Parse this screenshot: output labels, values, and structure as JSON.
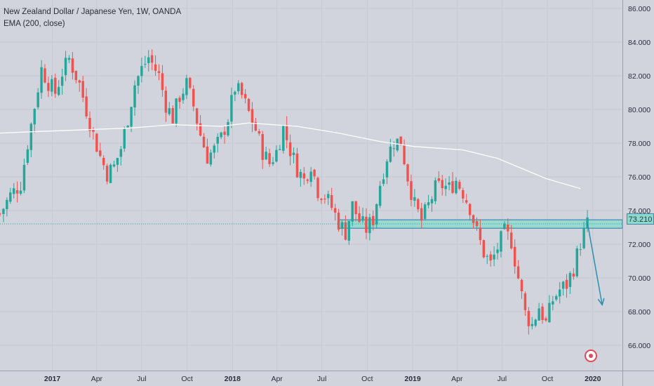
{
  "legend": {
    "symbol": "New Zealand Dollar / Japanese Yen, 1W, OANDA",
    "indicator": "EMA (200, close)"
  },
  "price_label": "73.210",
  "colors": {
    "background": "#d1d4dc",
    "up": "#26a69a",
    "down": "#ef5350",
    "ema": "#ffffff",
    "zone_fill": "#8fd9cc",
    "zone_border": "#3f87b0",
    "arrow": "#2a8fb0",
    "alert": "#e04a5a"
  },
  "icons": [
    "alert-icon"
  ],
  "chart_data": {
    "type": "candlestick",
    "interval": "1W",
    "ylim": [
      64.5,
      86.5
    ],
    "x_range": [
      "2016-09-17",
      "2020-03-01"
    ],
    "y_ticks": [
      "66.000",
      "68.000",
      "70.000",
      "72.000",
      "74.000",
      "76.000",
      "78.000",
      "80.000",
      "82.000",
      "84.000",
      "86.000"
    ],
    "x_ticks": [
      {
        "label": "2017",
        "date": "2017-01-01",
        "bold": true
      },
      {
        "label": "Apr",
        "date": "2017-04-01"
      },
      {
        "label": "Jul",
        "date": "2017-07-01"
      },
      {
        "label": "Oct",
        "date": "2017-10-01"
      },
      {
        "label": "2018",
        "date": "2018-01-01",
        "bold": true
      },
      {
        "label": "Apr",
        "date": "2018-04-01"
      },
      {
        "label": "Jul",
        "date": "2018-07-01"
      },
      {
        "label": "Oct",
        "date": "2018-10-01"
      },
      {
        "label": "2019",
        "date": "2019-01-01",
        "bold": true
      },
      {
        "label": "Apr",
        "date": "2019-04-01"
      },
      {
        "label": "Jul",
        "date": "2019-07-01"
      },
      {
        "label": "Oct",
        "date": "2019-10-01"
      },
      {
        "label": "2020",
        "date": "2020-01-01",
        "bold": true
      }
    ],
    "current_price": 73.21,
    "close_points": [
      [
        "2016-09-17",
        73.8
      ],
      [
        "2016-10-08",
        74.9
      ],
      [
        "2016-10-29",
        75.6
      ],
      [
        "2016-11-12",
        78.0
      ],
      [
        "2016-11-26",
        80.2
      ],
      [
        "2016-12-10",
        82.4
      ],
      [
        "2016-12-24",
        81.6
      ],
      [
        "2017-01-07",
        81.0
      ],
      [
        "2017-01-21",
        82.2
      ],
      [
        "2017-02-04",
        83.0
      ],
      [
        "2017-02-25",
        81.5
      ],
      [
        "2017-03-11",
        80.0
      ],
      [
        "2017-03-25",
        78.5
      ],
      [
        "2017-04-08",
        77.2
      ],
      [
        "2017-04-22",
        76.2
      ],
      [
        "2017-05-06",
        76.6
      ],
      [
        "2017-05-20",
        77.7
      ],
      [
        "2017-06-03",
        79.5
      ],
      [
        "2017-06-17",
        81.5
      ],
      [
        "2017-07-01",
        82.4
      ],
      [
        "2017-07-15",
        83.1
      ],
      [
        "2017-08-05",
        82.0
      ],
      [
        "2017-08-19",
        80.3
      ],
      [
        "2017-09-02",
        79.5
      ],
      [
        "2017-09-16",
        80.8
      ],
      [
        "2017-09-30",
        81.5
      ],
      [
        "2017-10-14",
        80.2
      ],
      [
        "2017-10-28",
        78.5
      ],
      [
        "2017-11-11",
        77.2
      ],
      [
        "2017-11-25",
        77.6
      ],
      [
        "2017-12-09",
        78.3
      ],
      [
        "2017-12-23",
        79.5
      ],
      [
        "2018-01-06",
        81.3
      ],
      [
        "2018-01-20",
        80.8
      ],
      [
        "2018-02-03",
        79.8
      ],
      [
        "2018-02-17",
        78.8
      ],
      [
        "2018-03-03",
        77.5
      ],
      [
        "2018-03-17",
        76.8
      ],
      [
        "2018-03-31",
        77.5
      ],
      [
        "2018-04-14",
        78.9
      ],
      [
        "2018-04-28",
        77.6
      ],
      [
        "2018-05-12",
        76.5
      ],
      [
        "2018-05-26",
        75.8
      ],
      [
        "2018-06-09",
        76.8
      ],
      [
        "2018-06-23",
        75.2
      ],
      [
        "2018-07-07",
        74.9
      ],
      [
        "2018-07-21",
        74.2
      ],
      [
        "2018-08-04",
        73.3
      ],
      [
        "2018-08-18",
        72.7
      ],
      [
        "2018-09-01",
        74.3
      ],
      [
        "2018-09-15",
        73.4
      ],
      [
        "2018-09-29",
        72.9
      ],
      [
        "2018-10-13",
        73.5
      ],
      [
        "2018-10-27",
        75.6
      ],
      [
        "2018-11-10",
        77.2
      ],
      [
        "2018-11-24",
        78.1
      ],
      [
        "2018-12-08",
        78.1
      ],
      [
        "2018-12-22",
        76.0
      ],
      [
        "2019-01-05",
        74.3
      ],
      [
        "2019-01-19",
        73.4
      ],
      [
        "2019-02-02",
        74.3
      ],
      [
        "2019-02-16",
        75.3
      ],
      [
        "2019-03-02",
        75.5
      ],
      [
        "2019-03-16",
        75.3
      ],
      [
        "2019-03-30",
        75.8
      ],
      [
        "2019-04-13",
        75.1
      ],
      [
        "2019-04-27",
        74.2
      ],
      [
        "2019-05-11",
        72.7
      ],
      [
        "2019-05-25",
        71.5
      ],
      [
        "2019-06-08",
        70.8
      ],
      [
        "2019-06-22",
        71.8
      ],
      [
        "2019-07-06",
        72.7
      ],
      [
        "2019-07-20",
        72.2
      ],
      [
        "2019-08-03",
        70.0
      ],
      [
        "2019-08-17",
        67.9
      ],
      [
        "2019-08-31",
        67.2
      ],
      [
        "2019-09-14",
        68.3
      ],
      [
        "2019-09-28",
        67.3
      ],
      [
        "2019-10-12",
        68.7
      ],
      [
        "2019-10-26",
        69.3
      ],
      [
        "2019-11-09",
        69.6
      ],
      [
        "2019-11-23",
        70.6
      ],
      [
        "2019-12-07",
        72.1
      ],
      [
        "2019-12-21",
        73.2
      ]
    ],
    "ema_points": [
      [
        "2016-09-17",
        78.6
      ],
      [
        "2016-12-10",
        78.7
      ],
      [
        "2017-03-11",
        78.8
      ],
      [
        "2017-06-10",
        78.9
      ],
      [
        "2017-09-02",
        79.1
      ],
      [
        "2017-12-09",
        79.0
      ],
      [
        "2018-02-03",
        79.2
      ],
      [
        "2018-05-12",
        79.0
      ],
      [
        "2018-08-04",
        78.6
      ],
      [
        "2018-10-27",
        78.1
      ],
      [
        "2019-01-05",
        77.8
      ],
      [
        "2019-04-13",
        77.6
      ],
      [
        "2019-06-22",
        77.1
      ],
      [
        "2019-09-28",
        75.9
      ],
      [
        "2019-12-07",
        75.3
      ]
    ],
    "horizontal_zone": {
      "from": "2018-08-04",
      "to": "2020-03-01",
      "low": 72.95,
      "high": 73.45
    },
    "projection_arrow": [
      [
        "2019-12-21",
        73.3
      ],
      [
        "2020-01-20",
        68.4
      ]
    ]
  }
}
